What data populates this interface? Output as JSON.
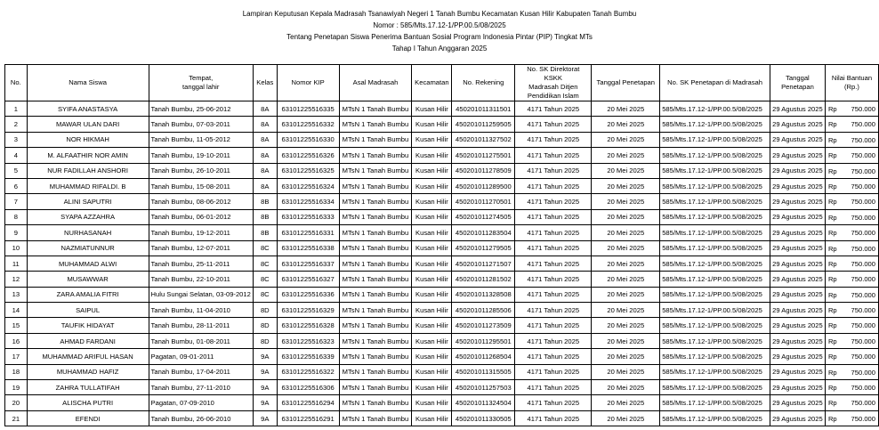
{
  "header": {
    "lines": [
      "Lampiran Keputusan Kepala Madrasah Tsanawiyah Negeri 1 Tanah Bumbu Kecamatan Kusan Hilir Kabupaten Tanah Bumbu",
      "Nomor : 585/Mts.17.12-1/PP.00.5/08/2025",
      "Tentang Penetapan Siswa Penerima Bantuan Sosial Program Indonesia Pintar (PIP) Tingkat MTs",
      "Tahap I Tahun Anggaran 2025"
    ]
  },
  "table": {
    "columns": [
      "No.",
      "Nama Siswa",
      "Tempat,\ntanggal lahir",
      "Kelas",
      "Nomor KIP",
      "Asal Madrasah",
      "Kecamatan",
      "No. Rekening",
      "No. SK Direktorat KSKK\nMadrasah Ditjen\nPendidikan Islam",
      "Tanggal Penetapan",
      "No. SK Penetapan di Madrasah",
      "Tanggal\nPenetapan",
      "Nilai Bantuan\n(Rp.)"
    ],
    "rows": [
      [
        "1",
        "SYIFA ANASTASYA",
        "Tanah Bumbu, 25-06-2012",
        "8A",
        "63101225516335",
        "MTsN 1 Tanah Bumbu",
        "Kusan Hilir",
        "450201011311501",
        "4171 Tahun 2025",
        "20 Mei 2025",
        "585/Mts.17.12-1/PP.00.5/08/2025",
        "29 Agustus 2025",
        "Rp",
        "750.000"
      ],
      [
        "2",
        "MAWAR ULAN DARI",
        "Tanah Bumbu, 07-03-2011",
        "8A",
        "63101225516332",
        "MTsN 1 Tanah Bumbu",
        "Kusan Hilir",
        "450201011259505",
        "4171 Tahun 2025",
        "20 Mei 2025",
        "585/Mts.17.12-1/PP.00.5/08/2025",
        "29 Agustus 2025",
        "Rp",
        "750.000"
      ],
      [
        "3",
        "NOR HIKMAH",
        "Tanah Bumbu, 11-05-2012",
        "8A",
        "63101225516330",
        "MTsN 1 Tanah Bumbu",
        "Kusan Hilir",
        "450201011327502",
        "4171 Tahun 2025",
        "20 Mei 2025",
        "585/Mts.17.12-1/PP.00.5/08/2025",
        "29 Agustus 2025",
        "Rp",
        "750.000"
      ],
      [
        "4",
        "M. ALFAATHIR NOR AMIN",
        "Tanah Bumbu, 19-10-2011",
        "8A",
        "63101225516326",
        "MTsN 1 Tanah Bumbu",
        "Kusan Hilir",
        "450201011275501",
        "4171 Tahun 2025",
        "20 Mei 2025",
        "585/Mts.17.12-1/PP.00.5/08/2025",
        "29 Agustus 2025",
        "Rp",
        "750.000"
      ],
      [
        "5",
        "NUR FADILLAH ANSHORI",
        "Tanah Bumbu, 26-10-2011",
        "8A",
        "63101225516325",
        "MTsN 1 Tanah Bumbu",
        "Kusan Hilir",
        "450201011278509",
        "4171 Tahun 2025",
        "20 Mei 2025",
        "585/Mts.17.12-1/PP.00.5/08/2025",
        "29 Agustus 2025",
        "Rp",
        "750.000"
      ],
      [
        "6",
        "MUHAMMAD RIFALDI. B",
        "Tanah Bumbu, 15-08-2011",
        "8A",
        "63101225516324",
        "MTsN 1 Tanah Bumbu",
        "Kusan Hilir",
        "450201011289500",
        "4171 Tahun 2025",
        "20 Mei 2025",
        "585/Mts.17.12-1/PP.00.5/08/2025",
        "29 Agustus 2025",
        "Rp",
        "750.000"
      ],
      [
        "7",
        "ALINI SAPUTRI",
        "Tanah Bumbu, 08-06-2012",
        "8B",
        "63101225516334",
        "MTsN 1 Tanah Bumbu",
        "Kusan Hilir",
        "450201011270501",
        "4171 Tahun 2025",
        "20 Mei 2025",
        "585/Mts.17.12-1/PP.00.5/08/2025",
        "29 Agustus 2025",
        "Rp",
        "750.000"
      ],
      [
        "8",
        "SYAPA AZZAHRA",
        "Tanah Bumbu, 06-01-2012",
        "8B",
        "63101225516333",
        "MTsN 1 Tanah Bumbu",
        "Kusan Hilir",
        "450201011274505",
        "4171 Tahun 2025",
        "20 Mei 2025",
        "585/Mts.17.12-1/PP.00.5/08/2025",
        "29 Agustus 2025",
        "Rp",
        "750.000"
      ],
      [
        "9",
        "NURHASANAH",
        "Tanah Bumbu, 19-12-2011",
        "8B",
        "63101225516331",
        "MTsN 1 Tanah Bumbu",
        "Kusan Hilir",
        "450201011283504",
        "4171 Tahun 2025",
        "20 Mei 2025",
        "585/Mts.17.12-1/PP.00.5/08/2025",
        "29 Agustus 2025",
        "Rp",
        "750.000"
      ],
      [
        "10",
        "NAZMIATUNNUR",
        "Tanah Bumbu, 12-07-2011",
        "8C",
        "63101225516338",
        "MTsN 1 Tanah Bumbu",
        "Kusan Hilir",
        "450201011279505",
        "4171 Tahun 2025",
        "20 Mei 2025",
        "585/Mts.17.12-1/PP.00.5/08/2025",
        "29 Agustus 2025",
        "Rp",
        "750.000"
      ],
      [
        "11",
        "MUHAMMAD ALWI",
        "Tanah Bumbu, 25-11-2011",
        "8C",
        "63101225516337",
        "MTsN 1 Tanah Bumbu",
        "Kusan Hilir",
        "450201011271507",
        "4171 Tahun 2025",
        "20 Mei 2025",
        "585/Mts.17.12-1/PP.00.5/08/2025",
        "29 Agustus 2025",
        "Rp",
        "750.000"
      ],
      [
        "12",
        "MUSAWWAR",
        "Tanah Bumbu, 22-10-2011",
        "8C",
        "63101225516327",
        "MTsN 1 Tanah Bumbu",
        "Kusan Hilir",
        "450201011281502",
        "4171 Tahun 2025",
        "20 Mei 2025",
        "585/Mts.17.12-1/PP.00.5/08/2025",
        "29 Agustus 2025",
        "Rp",
        "750.000"
      ],
      [
        "13",
        "ZARA AMALIA FITRI",
        "Hulu Sungai Selatan, 03-09-2012",
        "8C",
        "63101225516336",
        "MTsN 1 Tanah Bumbu",
        "Kusan Hilir",
        "450201011328508",
        "4171 Tahun 2025",
        "20 Mei 2025",
        "585/Mts.17.12-1/PP.00.5/08/2025",
        "29 Agustus 2025",
        "Rp",
        "750.000"
      ],
      [
        "14",
        "SAIPUL",
        "Tanah Bumbu, 11-04-2010",
        "8D",
        "63101225516329",
        "MTsN 1 Tanah Bumbu",
        "Kusan Hilir",
        "450201011285506",
        "4171 Tahun 2025",
        "20 Mei 2025",
        "585/Mts.17.12-1/PP.00.5/08/2025",
        "29 Agustus 2025",
        "Rp",
        "750.000"
      ],
      [
        "15",
        "TAUFIK HIDAYAT",
        "Tanah Bumbu, 28-11-2011",
        "8D",
        "63101225516328",
        "MTsN 1 Tanah Bumbu",
        "Kusan Hilir",
        "450201011273509",
        "4171 Tahun 2025",
        "20 Mei 2025",
        "585/Mts.17.12-1/PP.00.5/08/2025",
        "29 Agustus 2025",
        "Rp",
        "750.000"
      ],
      [
        "16",
        "AHMAD FARDANI",
        "Tanah Bumbu, 01-08-2011",
        "8D",
        "63101225516323",
        "MTsN 1 Tanah Bumbu",
        "Kusan Hilir",
        "450201011295501",
        "4171 Tahun 2025",
        "20 Mei 2025",
        "585/Mts.17.12-1/PP.00.5/08/2025",
        "29 Agustus 2025",
        "Rp",
        "750.000"
      ],
      [
        "17",
        "MUHAMMAD ARIFUL HASAN",
        "Pagatan, 09-01-2011",
        "9A",
        "63101225516339",
        "MTsN 1 Tanah Bumbu",
        "Kusan Hilir",
        "450201011268504",
        "4171 Tahun 2025",
        "20 Mei 2025",
        "585/Mts.17.12-1/PP.00.5/08/2025",
        "29 Agustus 2025",
        "Rp",
        "750.000"
      ],
      [
        "18",
        "MUHAMMAD HAFIZ",
        "Tanah Bumbu, 17-04-2011",
        "9A",
        "63101225516322",
        "MTsN 1 Tanah Bumbu",
        "Kusan Hilir",
        "450201011315505",
        "4171 Tahun 2025",
        "20 Mei 2025",
        "585/Mts.17.12-1/PP.00.5/08/2025",
        "29 Agustus 2025",
        "Rp",
        "750.000"
      ],
      [
        "19",
        "ZAHRA TULLATIFAH",
        "Tanah Bumbu, 27-11-2010",
        "9A",
        "63101225516306",
        "MTsN 1 Tanah Bumbu",
        "Kusan Hilir",
        "450201011257503",
        "4171 Tahun 2025",
        "20 Mei 2025",
        "585/Mts.17.12-1/PP.00.5/08/2025",
        "29 Agustus 2025",
        "Rp",
        "750.000"
      ],
      [
        "20",
        "ALISCHA PUTRI",
        "Pagatan, 07-09-2010",
        "9A",
        "63101225516294",
        "MTsN 1 Tanah Bumbu",
        "Kusan Hilir",
        "450201011324504",
        "4171 Tahun 2025",
        "20 Mei 2025",
        "585/Mts.17.12-1/PP.00.5/08/2025",
        "29 Agustus 2025",
        "Rp",
        "750.000"
      ],
      [
        "21",
        "EFENDI",
        "Tanah Bumbu, 26-06-2010",
        "9A",
        "63101225516291",
        "MTsN 1 Tanah Bumbu",
        "Kusan Hilir",
        "450201011330505",
        "4171 Tahun 2025",
        "20 Mei 2025",
        "585/Mts.17.12-1/PP.00.5/08/2025",
        "29 Agustus 2025",
        "Rp",
        "750.000"
      ]
    ]
  }
}
